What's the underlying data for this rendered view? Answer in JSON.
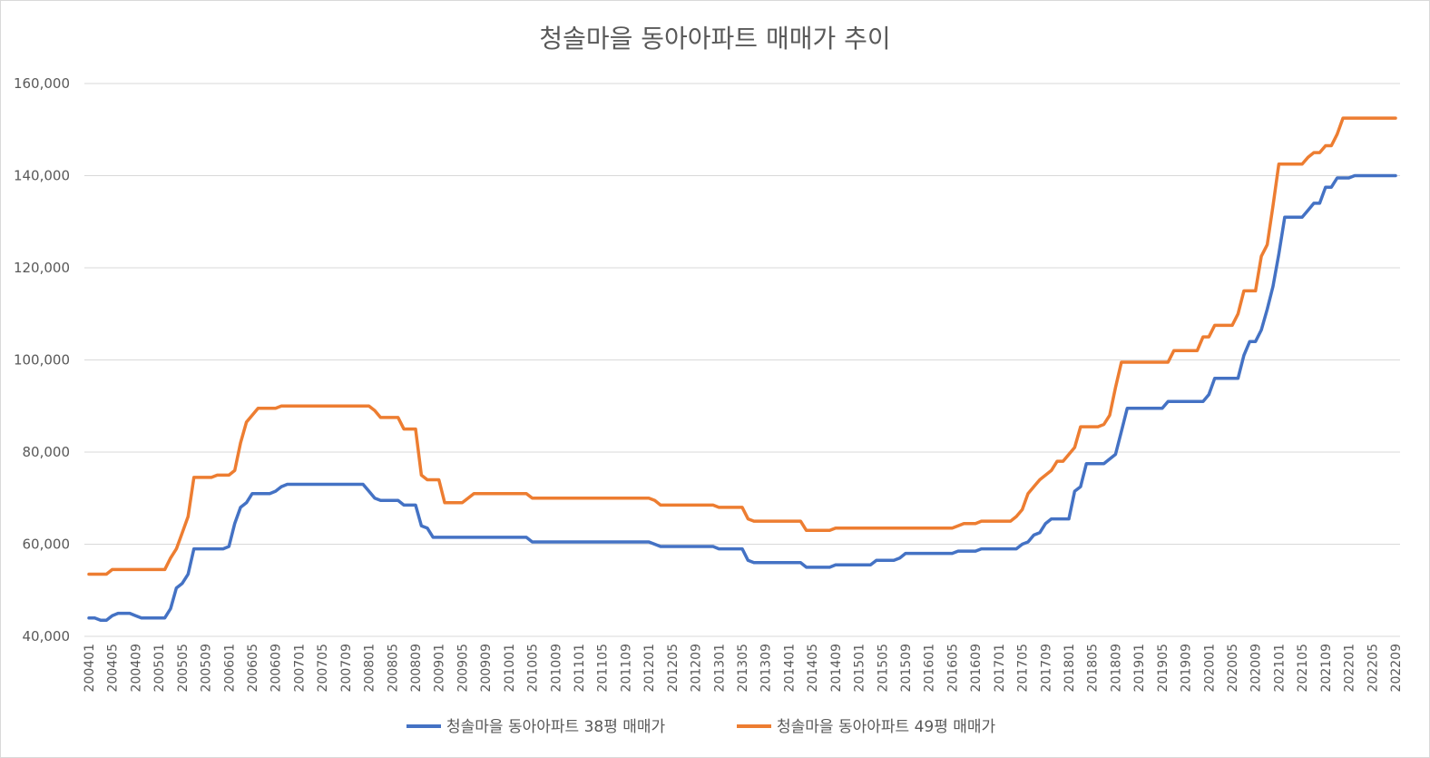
{
  "chart_data": {
    "type": "line",
    "title": "청솔마을 동아아파트 매매가 추이",
    "xlabel": "",
    "ylabel": "",
    "ylim": [
      40000,
      160000
    ],
    "yticks": [
      40000,
      60000,
      80000,
      100000,
      120000,
      140000,
      160000
    ],
    "ytick_labels": [
      "40,000",
      "60,000",
      "80,000",
      "100,000",
      "120,000",
      "140,000",
      "160,000"
    ],
    "x_start": "200401",
    "x_end": "202209",
    "xtick_labels": [
      "200401",
      "200405",
      "200409",
      "200501",
      "200505",
      "200509",
      "200601",
      "200605",
      "200609",
      "200701",
      "200705",
      "200709",
      "200801",
      "200805",
      "200809",
      "200901",
      "200905",
      "200909",
      "201001",
      "201005",
      "201009",
      "201101",
      "201105",
      "201109",
      "201201",
      "201205",
      "201209",
      "201301",
      "201305",
      "201309",
      "201401",
      "201405",
      "201409",
      "201501",
      "201505",
      "201509",
      "201601",
      "201605",
      "201609",
      "201701",
      "201705",
      "201709",
      "201801",
      "201805",
      "201809",
      "201901",
      "201905",
      "201909",
      "202001",
      "202005",
      "202009",
      "202101",
      "202105",
      "202109",
      "202201",
      "202205",
      "202209"
    ],
    "grid": true,
    "legend_position": "bottom",
    "series": [
      {
        "name": "청솔마을 동아아파트 38평 매매가",
        "color": "#4472c4",
        "points": [
          [
            "200401",
            44000
          ],
          [
            "200402",
            44000
          ],
          [
            "200403",
            43500
          ],
          [
            "200404",
            43500
          ],
          [
            "200405",
            44500
          ],
          [
            "200406",
            45000
          ],
          [
            "200407",
            45000
          ],
          [
            "200408",
            45000
          ],
          [
            "200409",
            44500
          ],
          [
            "200410",
            44000
          ],
          [
            "200411",
            44000
          ],
          [
            "200412",
            44000
          ],
          [
            "200501",
            44000
          ],
          [
            "200502",
            44000
          ],
          [
            "200503",
            46000
          ],
          [
            "200504",
            50500
          ],
          [
            "200505",
            51500
          ],
          [
            "200506",
            53500
          ],
          [
            "200507",
            59000
          ],
          [
            "200508",
            59000
          ],
          [
            "200512",
            59000
          ],
          [
            "200601",
            59500
          ],
          [
            "200602",
            64500
          ],
          [
            "200603",
            68000
          ],
          [
            "200604",
            69000
          ],
          [
            "200605",
            71000
          ],
          [
            "200608",
            71000
          ],
          [
            "200609",
            71500
          ],
          [
            "200610",
            72500
          ],
          [
            "200611",
            73000
          ],
          [
            "200712",
            73000
          ],
          [
            "200801",
            71500
          ],
          [
            "200802",
            70000
          ],
          [
            "200803",
            69500
          ],
          [
            "200806",
            69500
          ],
          [
            "200807",
            68500
          ],
          [
            "200809",
            68500
          ],
          [
            "200810",
            64000
          ],
          [
            "200811",
            63500
          ],
          [
            "200812",
            61500
          ],
          [
            "201004",
            61500
          ],
          [
            "201005",
            60500
          ],
          [
            "201201",
            60500
          ],
          [
            "201202",
            60000
          ],
          [
            "201203",
            59500
          ],
          [
            "201212",
            59500
          ],
          [
            "201301",
            59000
          ],
          [
            "201305",
            59000
          ],
          [
            "201306",
            56500
          ],
          [
            "201307",
            56000
          ],
          [
            "201403",
            56000
          ],
          [
            "201404",
            55000
          ],
          [
            "201408",
            55000
          ],
          [
            "201409",
            55500
          ],
          [
            "201503",
            55500
          ],
          [
            "201504",
            56500
          ],
          [
            "201507",
            56500
          ],
          [
            "201508",
            57000
          ],
          [
            "201509",
            58000
          ],
          [
            "201604",
            58000
          ],
          [
            "201605",
            58000
          ],
          [
            "201606",
            58500
          ],
          [
            "201609",
            58500
          ],
          [
            "201610",
            59000
          ],
          [
            "201704",
            59000
          ],
          [
            "201705",
            60000
          ],
          [
            "201706",
            60500
          ],
          [
            "201707",
            62000
          ],
          [
            "201708",
            62500
          ],
          [
            "201709",
            64500
          ],
          [
            "201710",
            65500
          ],
          [
            "201712",
            65500
          ],
          [
            "201801",
            65500
          ],
          [
            "201802",
            71500
          ],
          [
            "201803",
            72500
          ],
          [
            "201804",
            77500
          ],
          [
            "201807",
            77500
          ],
          [
            "201809",
            79500
          ],
          [
            "201810",
            84500
          ],
          [
            "201811",
            89500
          ],
          [
            "201904",
            89500
          ],
          [
            "201905",
            89500
          ],
          [
            "201906",
            91000
          ],
          [
            "201911",
            91000
          ],
          [
            "201912",
            91000
          ],
          [
            "202001",
            92500
          ],
          [
            "202002",
            96000
          ],
          [
            "202006",
            96000
          ],
          [
            "202007",
            101000
          ],
          [
            "202008",
            104000
          ],
          [
            "202009",
            104000
          ],
          [
            "202010",
            106500
          ],
          [
            "202011",
            111000
          ],
          [
            "202012",
            116000
          ],
          [
            "202101",
            123000
          ],
          [
            "202102",
            131000
          ],
          [
            "202105",
            131000
          ],
          [
            "202106",
            132500
          ],
          [
            "202107",
            134000
          ],
          [
            "202108",
            134000
          ],
          [
            "202109",
            137500
          ],
          [
            "202110",
            137500
          ],
          [
            "202111",
            139500
          ],
          [
            "202201",
            139500
          ],
          [
            "202202",
            140000
          ],
          [
            "202209",
            140000
          ]
        ]
      },
      {
        "name": "청솔마을 동아아파트 49평 매매가",
        "color": "#ed7d31",
        "points": [
          [
            "200401",
            53500
          ],
          [
            "200404",
            53500
          ],
          [
            "200405",
            54500
          ],
          [
            "200501",
            54500
          ],
          [
            "200502",
            54500
          ],
          [
            "200503",
            57000
          ],
          [
            "200504",
            59000
          ],
          [
            "200505",
            62500
          ],
          [
            "200506",
            66000
          ],
          [
            "200507",
            74500
          ],
          [
            "200510",
            74500
          ],
          [
            "200511",
            75000
          ],
          [
            "200512",
            75000
          ],
          [
            "200601",
            75000
          ],
          [
            "200602",
            76000
          ],
          [
            "200603",
            82000
          ],
          [
            "200604",
            86500
          ],
          [
            "200605",
            88000
          ],
          [
            "200606",
            89500
          ],
          [
            "200609",
            89500
          ],
          [
            "200610",
            90000
          ],
          [
            "200712",
            90000
          ],
          [
            "200801",
            90000
          ],
          [
            "200802",
            89000
          ],
          [
            "200803",
            87500
          ],
          [
            "200806",
            87500
          ],
          [
            "200807",
            85000
          ],
          [
            "200809",
            85000
          ],
          [
            "200810",
            75000
          ],
          [
            "200811",
            74000
          ],
          [
            "200901",
            74000
          ],
          [
            "200902",
            69000
          ],
          [
            "200905",
            69000
          ],
          [
            "200906",
            70000
          ],
          [
            "200907",
            71000
          ],
          [
            "201004",
            71000
          ],
          [
            "201005",
            70000
          ],
          [
            "201201",
            70000
          ],
          [
            "201202",
            69500
          ],
          [
            "201203",
            68500
          ],
          [
            "201212",
            68500
          ],
          [
            "201301",
            68000
          ],
          [
            "201305",
            68000
          ],
          [
            "201306",
            65500
          ],
          [
            "201307",
            65000
          ],
          [
            "201403",
            65000
          ],
          [
            "201404",
            63000
          ],
          [
            "201408",
            63000
          ],
          [
            "201409",
            63500
          ],
          [
            "201604",
            63500
          ],
          [
            "201605",
            63500
          ],
          [
            "201606",
            64000
          ],
          [
            "201607",
            64500
          ],
          [
            "201609",
            64500
          ],
          [
            "201610",
            65000
          ],
          [
            "201703",
            65000
          ],
          [
            "201704",
            66000
          ],
          [
            "201705",
            67500
          ],
          [
            "201706",
            71000
          ],
          [
            "201707",
            72500
          ],
          [
            "201708",
            74000
          ],
          [
            "201709",
            75000
          ],
          [
            "201710",
            76000
          ],
          [
            "201711",
            78000
          ],
          [
            "201712",
            78000
          ],
          [
            "201801",
            79500
          ],
          [
            "201802",
            81000
          ],
          [
            "201803",
            85500
          ],
          [
            "201806",
            85500
          ],
          [
            "201807",
            86000
          ],
          [
            "201808",
            88000
          ],
          [
            "201809",
            94000
          ],
          [
            "201810",
            99500
          ],
          [
            "201905",
            99500
          ],
          [
            "201906",
            99500
          ],
          [
            "201907",
            102000
          ],
          [
            "201910",
            102000
          ],
          [
            "201911",
            102000
          ],
          [
            "201912",
            105000
          ],
          [
            "202001",
            105000
          ],
          [
            "202002",
            107500
          ],
          [
            "202005",
            107500
          ],
          [
            "202006",
            110000
          ],
          [
            "202007",
            115000
          ],
          [
            "202009",
            115000
          ],
          [
            "202010",
            122500
          ],
          [
            "202011",
            125000
          ],
          [
            "202012",
            133500
          ],
          [
            "202101",
            142500
          ],
          [
            "202105",
            142500
          ],
          [
            "202106",
            144000
          ],
          [
            "202107",
            145000
          ],
          [
            "202108",
            145000
          ],
          [
            "202109",
            146500
          ],
          [
            "202110",
            146500
          ],
          [
            "202111",
            149000
          ],
          [
            "202112",
            152500
          ],
          [
            "202209",
            152500
          ]
        ]
      }
    ]
  }
}
